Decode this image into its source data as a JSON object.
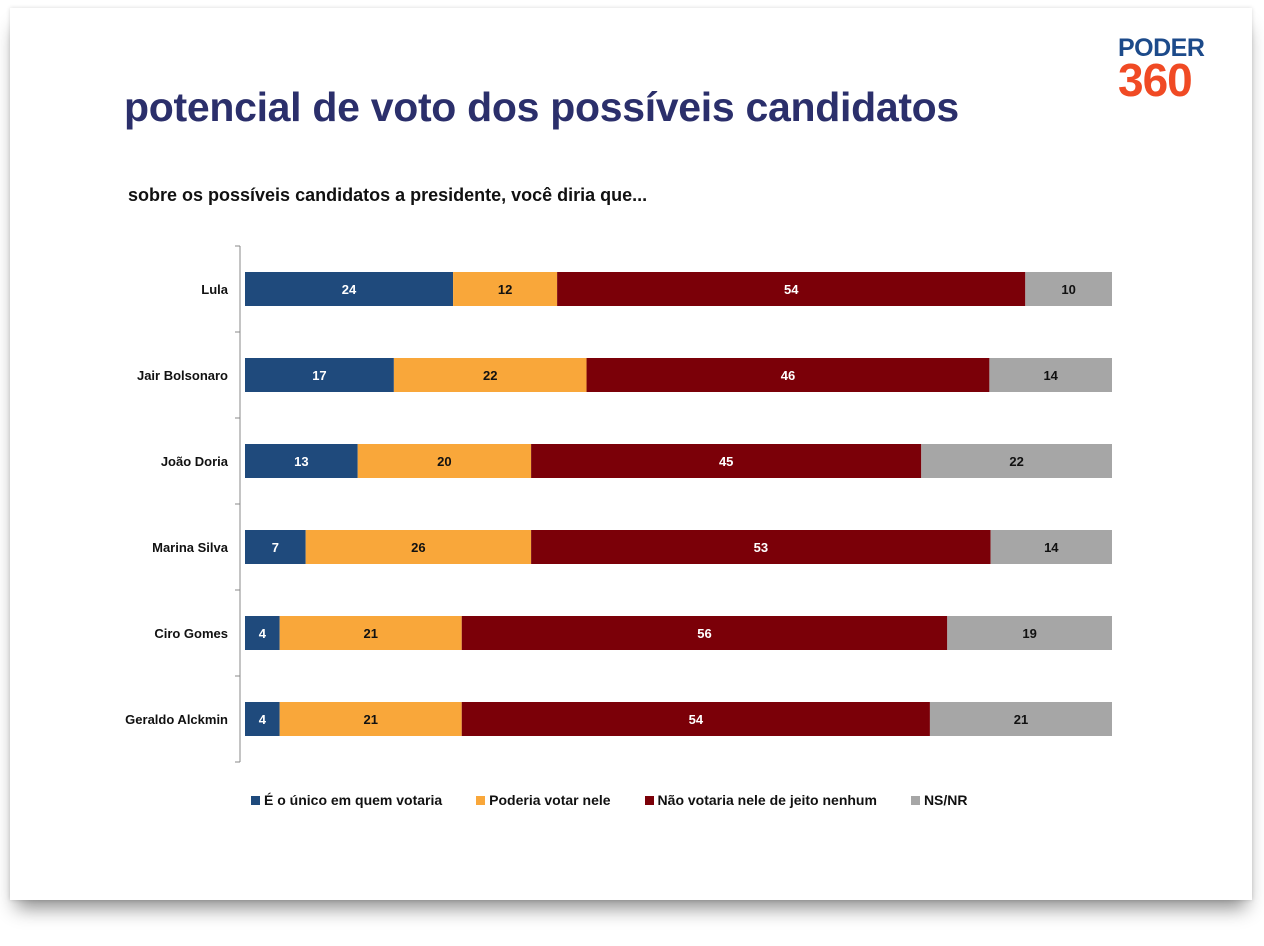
{
  "title": "potencial de voto dos possíveis candidatos",
  "subtitle": "sobre os possíveis candidatos a presidente, você diria que...",
  "logo": {
    "line1": "PODER",
    "line2": "360"
  },
  "chart_data": {
    "type": "bar",
    "orientation": "horizontal",
    "stacked": "100%",
    "categories": [
      "Lula",
      "Jair Bolsonaro",
      "João Doria",
      "Marina Silva",
      "Ciro Gomes",
      "Geraldo Alckmin"
    ],
    "series": [
      {
        "name": "É o único em quem votaria",
        "color": "#1f4a7c",
        "values": [
          24,
          17,
          13,
          7,
          4,
          4
        ]
      },
      {
        "name": "Poderia votar nele",
        "color": "#f9a73a",
        "values": [
          12,
          22,
          20,
          26,
          21,
          21
        ]
      },
      {
        "name": "Não votaria nele de jeito nenhum",
        "color": "#7b0008",
        "values": [
          54,
          46,
          45,
          53,
          56,
          54
        ]
      },
      {
        "name": "NS/NR",
        "color": "#a6a6a6",
        "values": [
          10,
          14,
          22,
          14,
          19,
          21
        ]
      }
    ],
    "label_colors": [
      "#ffffff",
      "#111111",
      "#ffffff",
      "#111111"
    ],
    "legend_position": "bottom",
    "grid": false
  }
}
